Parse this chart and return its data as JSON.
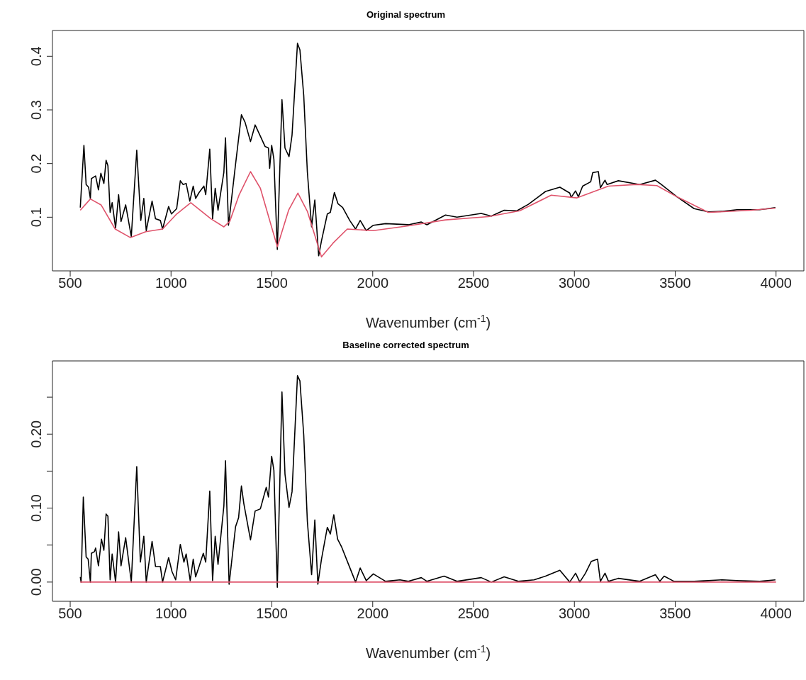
{
  "chart_data": [
    {
      "type": "line",
      "title": "Original spectrum",
      "xlabel": "Wavenumber (cm$^{-1}$)",
      "xlim": [
        412,
        4138
      ],
      "xticks": [
        500,
        1000,
        1500,
        2000,
        2500,
        3000,
        3500,
        4000
      ],
      "ylim": [
        0,
        0.448
      ],
      "yticks": [
        0.1,
        0.2,
        0.3,
        0.4
      ],
      "line_style": "solid",
      "marker": "none",
      "series": [
        {
          "color": "#000000",
          "x": [
            550,
            568,
            579,
            591,
            600,
            605,
            626,
            640,
            652,
            667,
            678,
            687,
            698,
            708,
            725,
            740,
            752,
            775,
            803,
            830,
            850,
            865,
            877,
            906,
            923,
            947,
            958,
            988,
            1002,
            1028,
            1046,
            1060,
            1075,
            1093,
            1110,
            1122,
            1139,
            1163,
            1172,
            1192,
            1206,
            1219,
            1233,
            1262,
            1270,
            1285,
            1320,
            1349,
            1367,
            1394,
            1417,
            1443,
            1466,
            1483,
            1489,
            1499,
            1510,
            1527,
            1550,
            1565,
            1585,
            1600,
            1627,
            1639,
            1658,
            1676,
            1697,
            1713,
            1732,
            1746,
            1775,
            1790,
            1810,
            1828,
            1851,
            1886,
            1915,
            1938,
            1968,
            2003,
            2064,
            2177,
            2241,
            2269,
            2361,
            2418,
            2538,
            2588,
            2652,
            2715,
            2772,
            2857,
            2928,
            2977,
            2984,
            3006,
            3020,
            3041,
            3081,
            3091,
            3119,
            3129,
            3152,
            3162,
            3218,
            3324,
            3402,
            3431,
            3509,
            3594,
            3664,
            3735,
            3806,
            3919,
            3997
          ],
          "values": [
            0.118,
            0.234,
            0.161,
            0.156,
            0.135,
            0.172,
            0.177,
            0.151,
            0.182,
            0.163,
            0.206,
            0.196,
            0.109,
            0.127,
            0.08,
            0.142,
            0.092,
            0.123,
            0.064,
            0.225,
            0.094,
            0.135,
            0.075,
            0.13,
            0.097,
            0.094,
            0.078,
            0.12,
            0.106,
            0.116,
            0.168,
            0.161,
            0.163,
            0.13,
            0.158,
            0.135,
            0.146,
            0.158,
            0.142,
            0.227,
            0.097,
            0.154,
            0.113,
            0.184,
            0.248,
            0.085,
            0.199,
            0.291,
            0.277,
            0.241,
            0.272,
            0.251,
            0.232,
            0.229,
            0.191,
            0.234,
            0.208,
            0.04,
            0.319,
            0.229,
            0.213,
            0.253,
            0.424,
            0.412,
            0.327,
            0.184,
            0.082,
            0.132,
            0.028,
            0.056,
            0.106,
            0.109,
            0.146,
            0.125,
            0.118,
            0.094,
            0.078,
            0.094,
            0.075,
            0.085,
            0.088,
            0.086,
            0.091,
            0.086,
            0.104,
            0.1,
            0.107,
            0.102,
            0.113,
            0.112,
            0.124,
            0.148,
            0.156,
            0.145,
            0.137,
            0.149,
            0.138,
            0.158,
            0.166,
            0.183,
            0.185,
            0.155,
            0.169,
            0.161,
            0.168,
            0.161,
            0.169,
            0.161,
            0.138,
            0.116,
            0.11,
            0.111,
            0.114,
            0.114,
            0.118
          ]
        },
        {
          "color": "#df536b",
          "x": [
            550,
            600,
            653,
            723,
            799,
            875,
            958,
            1028,
            1098,
            1198,
            1262,
            1291,
            1338,
            1394,
            1443,
            1527,
            1583,
            1629,
            1676,
            1746,
            1804,
            1874,
            2003,
            2177,
            2361,
            2574,
            2729,
            2885,
            3013,
            3169,
            3310,
            3409,
            3509,
            3664,
            3877,
            3997
          ],
          "values": [
            0.113,
            0.134,
            0.123,
            0.078,
            0.062,
            0.073,
            0.078,
            0.106,
            0.127,
            0.097,
            0.082,
            0.092,
            0.142,
            0.185,
            0.154,
            0.045,
            0.113,
            0.145,
            0.111,
            0.026,
            0.052,
            0.078,
            0.075,
            0.084,
            0.095,
            0.101,
            0.112,
            0.141,
            0.136,
            0.158,
            0.161,
            0.159,
            0.138,
            0.109,
            0.113,
            0.117
          ]
        }
      ]
    },
    {
      "type": "line",
      "title": "Baseline corrected spectrum",
      "xlabel": "Wavenumber (cm$^{-1}$)",
      "xlim": [
        412,
        4138
      ],
      "xticks": [
        500,
        1000,
        1500,
        2000,
        2500,
        3000,
        3500,
        4000
      ],
      "ylim": [
        -0.026,
        0.299
      ],
      "yticks": [
        {
          "value": 0,
          "label": "0.00"
        },
        {
          "value": 0.05,
          "label": null
        },
        {
          "value": 0.1,
          "label": "0.10"
        },
        {
          "value": 0.15,
          "label": null
        },
        {
          "value": 0.2,
          "label": "0.20"
        },
        {
          "value": 0.25,
          "label": null
        }
      ],
      "line_style": "solid",
      "marker": "none",
      "series": [
        {
          "color": "#000000",
          "x": [
            550,
            554,
            565,
            579,
            589,
            600,
            605,
            620,
            626,
            640,
            655,
            667,
            678,
            687,
            698,
            708,
            725,
            740,
            752,
            775,
            803,
            830,
            848,
            865,
            877,
            888,
            906,
            923,
            947,
            958,
            988,
            1005,
            1023,
            1046,
            1064,
            1075,
            1095,
            1110,
            1122,
            1139,
            1160,
            1172,
            1192,
            1206,
            1219,
            1233,
            1262,
            1270,
            1288,
            1320,
            1335,
            1349,
            1361,
            1394,
            1417,
            1443,
            1457,
            1472,
            1483,
            1499,
            1510,
            1527,
            1550,
            1565,
            1585,
            1600,
            1627,
            1639,
            1658,
            1676,
            1697,
            1713,
            1728,
            1746,
            1775,
            1790,
            1807,
            1826,
            1845,
            1880,
            1915,
            1938,
            1968,
            2003,
            2064,
            2135,
            2177,
            2241,
            2269,
            2354,
            2418,
            2538,
            2588,
            2652,
            2722,
            2800,
            2857,
            2928,
            2977,
            3006,
            3027,
            3055,
            3084,
            3115,
            3129,
            3152,
            3169,
            3218,
            3324,
            3402,
            3424,
            3445,
            3494,
            3594,
            3735,
            3806,
            3919,
            3997
          ],
          "values": [
            0.007,
            0,
            0.115,
            0.034,
            0.031,
            0,
            0.039,
            0.041,
            0.046,
            0.022,
            0.058,
            0.043,
            0.092,
            0.089,
            0.003,
            0.038,
            0,
            0.068,
            0.022,
            0.06,
            0,
            0.156,
            0.027,
            0.062,
            0,
            0.021,
            0.055,
            0.021,
            0.021,
            0,
            0.033,
            0.014,
            0.003,
            0.051,
            0.027,
            0.038,
            0.002,
            0.031,
            0.007,
            0.021,
            0.039,
            0.027,
            0.123,
            0.002,
            0.062,
            0.024,
            0.103,
            0.164,
            -0.003,
            0.075,
            0.087,
            0.13,
            0.106,
            0.057,
            0.096,
            0.099,
            0.113,
            0.128,
            0.115,
            0.17,
            0.151,
            -0.007,
            0.257,
            0.146,
            0.101,
            0.122,
            0.279,
            0.272,
            0.199,
            0.082,
            0.01,
            0.084,
            -0.003,
            0.031,
            0.074,
            0.065,
            0.091,
            0.058,
            0.048,
            0.024,
            0,
            0.019,
            0.002,
            0.011,
            0.001,
            0.003,
            0.001,
            0.006,
            0.001,
            0.008,
            0.001,
            0.006,
            0,
            0.007,
            0.001,
            0.003,
            0.008,
            0.016,
            0,
            0.012,
            0,
            0.012,
            0.028,
            0.031,
            0.001,
            0.012,
            0.001,
            0.005,
            0.001,
            0.01,
            0.001,
            0.008,
            0.001,
            0.001,
            0.003,
            0.002,
            0.001,
            0.003
          ]
        },
        {
          "color": "#df536b",
          "x": [
            550,
            4000
          ],
          "values": [
            0,
            0
          ]
        }
      ]
    }
  ]
}
